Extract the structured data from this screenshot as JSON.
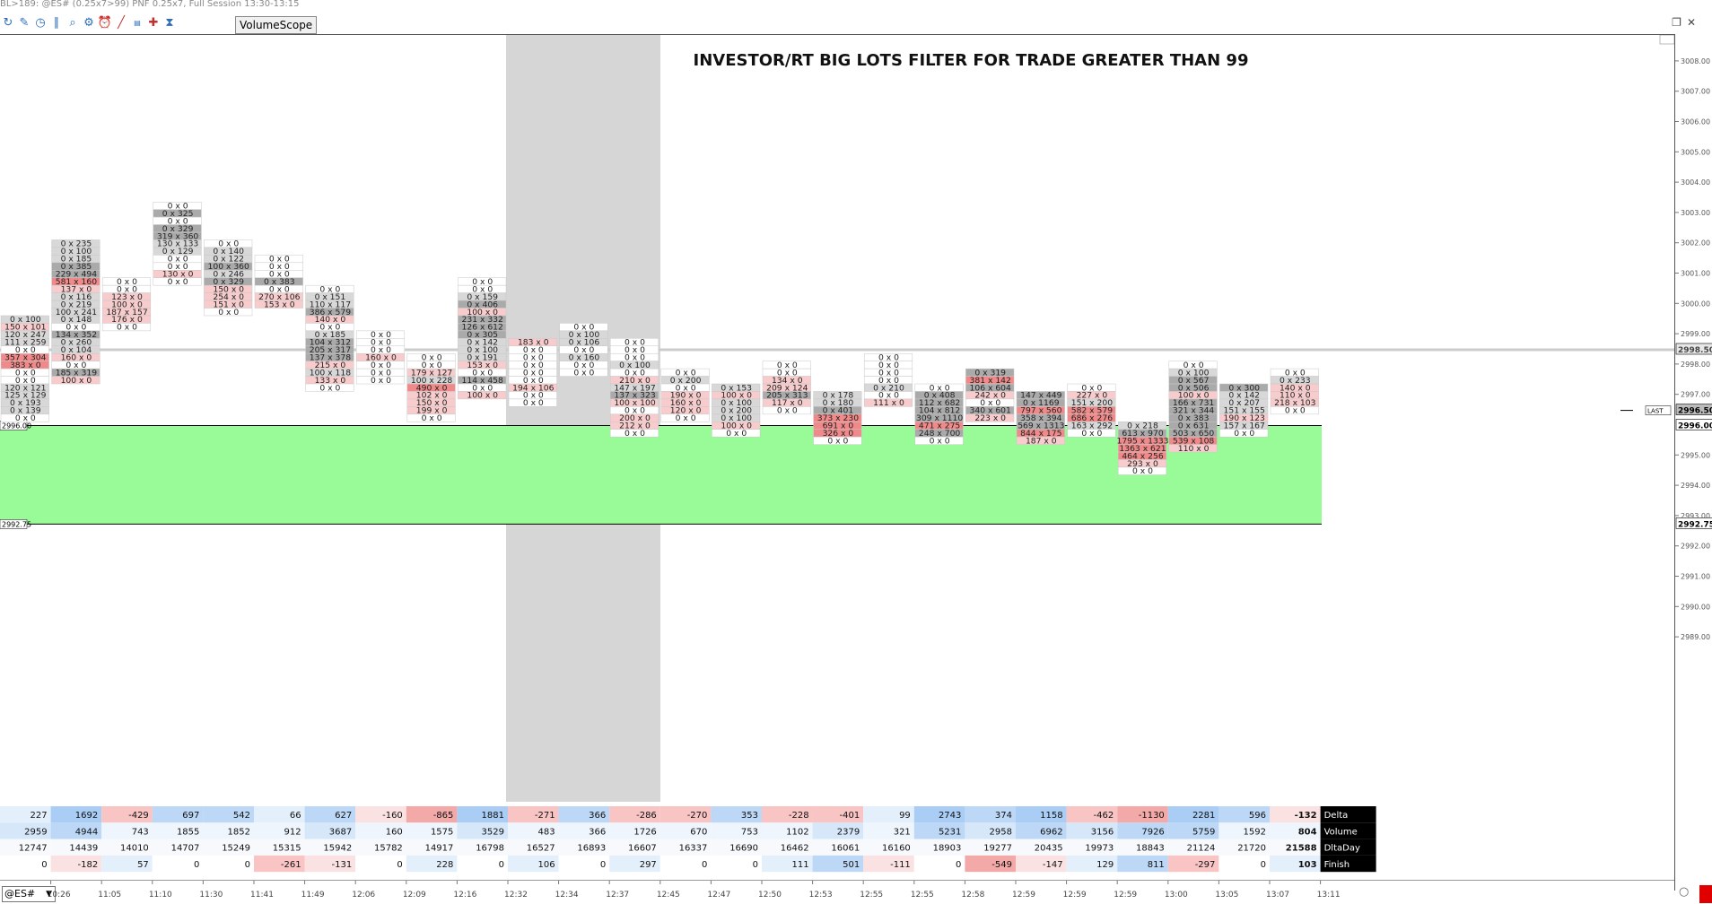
{
  "window": {
    "title": "BL>189: @ES# (0.25x7>99) PNF 0.25x7, Full Session 13:30-13:15",
    "vs_label": "VolumeScope",
    "symbol": "@ES#",
    "toolbar_icons": [
      "refresh-icon",
      "pencil-icon",
      "clock-icon",
      "chart-settings-icon",
      "zoom-icon",
      "gear-icon",
      "alarm-icon",
      "line-icon",
      "title-icon",
      "crosshair-icon",
      "hourglass-icon"
    ]
  },
  "chart_title": "INVESTOR/RT BIG LOTS FILTER FOR TRADE GREATER THAN 99",
  "colors": {
    "green_zone": "#98fb98",
    "gray_band": "#d6d6d6",
    "sell_strong": "#f08a8a",
    "sell_light": "#f8cccc",
    "buy_strong": "#aaaaaa",
    "buy_light": "#d8d8d8",
    "delta_pos": "#bcd8f6",
    "delta_neg": "#f8c4c4"
  },
  "zones": {
    "upper_label": "2996.00",
    "lower_label": "2992.75"
  },
  "price_axis": {
    "labels": [
      "3008.00",
      "3007.00",
      "3006.00",
      "3005.00",
      "3004.00",
      "3003.00",
      "3002.00",
      "3001.00",
      "3000.00",
      "2999.00",
      "2998.00",
      "2997.00",
      "2995.00",
      "2994.00",
      "2993.00",
      "2992.00",
      "2991.00",
      "2990.00",
      "2989.00"
    ],
    "last_label": "LAST",
    "current_label": "2996.50",
    "zone_label": "2996.00",
    "low_label": "2992.75",
    "ref_label": "2998.50"
  },
  "chart_data": {
    "type": "table",
    "times": [
      "10:26",
      "11:05",
      "11:10",
      "11:30",
      "11:41",
      "11:49",
      "12:06",
      "12:09",
      "12:16",
      "12:32",
      "12:34",
      "12:37",
      "12:45",
      "12:47",
      "12:50",
      "12:53",
      "12:55",
      "12:55",
      "12:58",
      "12:59",
      "12:59",
      "12:59",
      "13:00",
      "13:05",
      "13:07",
      "13:11"
    ],
    "bars": [
      {
        "start": 2999.5,
        "rows": [
          "0 x 100",
          "150 x 101",
          "120 x 247",
          "111 x 259",
          "0 x 0",
          "357 x 304",
          "383 x 0",
          "0 x 0",
          "0 x 0",
          "120 x 121",
          "125 x 129",
          "0 x 193",
          "0 x 139",
          "0 x 0"
        ]
      },
      {
        "start": 3002.0,
        "rows": [
          "0 x 235",
          "0 x 100",
          "0 x 185",
          "0 x 385",
          "229 x 494",
          "581 x 160",
          "137 x 0",
          "0 x 116",
          "0 x 219",
          "100 x 241",
          "0 x 148",
          "0 x 0",
          "134 x 352",
          "0 x 260",
          "0 x 104",
          "160 x 0",
          "0 x 0",
          "185 x 319",
          "100 x 0"
        ]
      },
      {
        "start": 3000.75,
        "rows": [
          "0 x 0",
          "0 x 0",
          "123 x 0",
          "100 x 0",
          "187 x 157",
          "176 x 0",
          "0 x 0"
        ]
      },
      {
        "start": 3003.25,
        "rows": [
          "0 x 0",
          "0 x 325",
          "0 x 0",
          "0 x 329",
          "319 x 360",
          "130 x 133",
          "0 x 129",
          "0 x 0",
          "0 x 0",
          "130 x 0",
          "0 x 0"
        ]
      },
      {
        "start": 3002.0,
        "rows": [
          "0 x 0",
          "0 x 140",
          "0 x 122",
          "100 x 360",
          "0 x 246",
          "0 x 329",
          "150 x 0",
          "254 x 0",
          "151 x 0",
          "0 x 0"
        ]
      },
      {
        "start": 3001.5,
        "rows": [
          "0 x 0",
          "0 x 0",
          "0 x 0",
          "0 x 383",
          "0 x 0",
          "270 x 106",
          "153 x 0"
        ]
      },
      {
        "start": 3000.5,
        "rows": [
          "0 x 0",
          "0 x 151",
          "110 x 117",
          "386 x 579",
          "140 x 0",
          "0 x 0",
          "0 x 185",
          "104 x 312",
          "205 x 317",
          "137 x 378",
          "215 x 0",
          "100 x 118",
          "133 x 0",
          "0 x 0"
        ]
      },
      {
        "start": 2999.0,
        "rows": [
          "0 x 0",
          "0 x 0",
          "0 x 0",
          "160 x 0",
          "0 x 0",
          "0 x 0",
          "0 x 0"
        ]
      },
      {
        "start": 2998.25,
        "rows": [
          "0 x 0",
          "0 x 0",
          "179 x 127",
          "100 x 228",
          "490 x 0",
          "102 x 0",
          "150 x 0",
          "199 x 0",
          "0 x 0"
        ]
      },
      {
        "start": 3000.75,
        "rows": [
          "0 x 0",
          "0 x 0",
          "0 x 159",
          "0 x 406",
          "100 x 0",
          "231 x 332",
          "126 x 612",
          "0 x 305",
          "0 x 142",
          "0 x 100",
          "0 x 191",
          "153 x 0",
          "0 x 0",
          "114 x 458",
          "0 x 0",
          "100 x 0"
        ]
      },
      {
        "start": 2998.75,
        "rows": [
          "183 x 0",
          "0 x 0",
          "0 x 0",
          "0 x 0",
          "0 x 0",
          "0 x 0",
          "194 x 106",
          "0 x 0",
          "0 x 0"
        ]
      },
      {
        "start": 2999.25,
        "rows": [
          "0 x 0",
          "0 x 100",
          "0 x 106",
          "0 x 0",
          "0 x 160",
          "0 x 0",
          "0 x 0"
        ]
      },
      {
        "start": 2998.75,
        "rows": [
          "0 x 0",
          "0 x 0",
          "0 x 0",
          "0 x 100",
          "0 x 0",
          "210 x 0",
          "147 x 197",
          "137 x 323",
          "100 x 100",
          "0 x 0",
          "200 x 0",
          "212 x 0",
          "0 x 0"
        ]
      },
      {
        "start": 2997.75,
        "rows": [
          "0 x 0",
          "0 x 200",
          "0 x 0",
          "190 x 0",
          "160 x 0",
          "120 x 0",
          "0 x 0"
        ]
      },
      {
        "start": 2997.25,
        "rows": [
          "0 x 153",
          "100 x 0",
          "0 x 100",
          "0 x 200",
          "0 x 100",
          "100 x 0",
          "0 x 0"
        ]
      },
      {
        "start": 2998.0,
        "rows": [
          "0 x 0",
          "0 x 0",
          "134 x 0",
          "209 x 124",
          "205 x 313",
          "117 x 0",
          "0 x 0"
        ]
      },
      {
        "start": 2997.0,
        "rows": [
          "0 x 178",
          "0 x 180",
          "0 x 401",
          "373 x 230",
          "691 x 0",
          "326 x 0",
          "0 x 0"
        ]
      },
      {
        "start": 2998.25,
        "rows": [
          "0 x 0",
          "0 x 0",
          "0 x 0",
          "0 x 0",
          "0 x 210",
          "0 x 0",
          "111 x 0"
        ]
      },
      {
        "start": 2997.25,
        "rows": [
          "0 x 0",
          "0 x 408",
          "112 x 682",
          "104 x 812",
          "309 x 1110",
          "471 x 275",
          "248 x 700",
          "0 x 0"
        ]
      },
      {
        "start": 2997.75,
        "rows": [
          "0 x 319",
          "381 x 142",
          "106 x 604",
          "242 x 0",
          "0 x 0",
          "340 x 601",
          "223 x 0"
        ]
      },
      {
        "start": 2997.0,
        "rows": [
          "147 x 449",
          "0 x 1169",
          "797 x 560",
          "358 x 394",
          "569 x 1313",
          "844 x 175",
          "187 x 0"
        ]
      },
      {
        "start": 2997.25,
        "rows": [
          "0 x 0",
          "227 x 0",
          "151 x 200",
          "582 x 579",
          "686 x 276",
          "163 x 292",
          "0 x 0"
        ]
      },
      {
        "start": 2996.0,
        "rows": [
          "0 x 218",
          "613 x 970",
          "1795 x 1333",
          "1363 x 621",
          "464 x 256",
          "293 x 0",
          "0 x 0"
        ]
      },
      {
        "start": 2998.0,
        "rows": [
          "0 x 0",
          "0 x 100",
          "0 x 567",
          "0 x 506",
          "100 x 0",
          "166 x 731",
          "321 x 344",
          "0 x 383",
          "0 x 631",
          "503 x 650",
          "539 x 108",
          "110 x 0"
        ]
      },
      {
        "start": 2997.25,
        "rows": [
          "0 x 300",
          "0 x 142",
          "0 x 207",
          "151 x 155",
          "190 x 123",
          "157 x 167",
          "0 x 0"
        ]
      },
      {
        "start": 2997.75,
        "rows": [
          "0 x 0",
          "0 x 233",
          "140 x 0",
          "110 x 0",
          "218 x 103",
          "0 x 0"
        ]
      }
    ],
    "stats": {
      "labels": [
        "Delta",
        "Volume",
        "DltaDay",
        "Finish"
      ],
      "delta": [
        227,
        1692,
        -429,
        697,
        542,
        66,
        627,
        -160,
        -865,
        1881,
        -271,
        366,
        -286,
        -270,
        353,
        -228,
        -401,
        99,
        2743,
        374,
        1158,
        -462,
        -1130,
        2281,
        596,
        -132
      ],
      "volume": [
        2959,
        4944,
        743,
        1855,
        1852,
        912,
        3687,
        160,
        1575,
        3529,
        483,
        366,
        1726,
        670,
        753,
        1102,
        2379,
        321,
        5231,
        2958,
        6962,
        3156,
        7926,
        5759,
        1592,
        804
      ],
      "dltaday": [
        12747,
        14439,
        14010,
        14707,
        15249,
        15315,
        15942,
        15782,
        14917,
        16798,
        16527,
        16893,
        16607,
        16337,
        16690,
        16462,
        16061,
        16160,
        18903,
        19277,
        20435,
        19973,
        18843,
        21124,
        21720,
        21588
      ],
      "finish": [
        0,
        -182,
        57,
        0,
        0,
        -261,
        -131,
        0,
        228,
        0,
        106,
        0,
        297,
        0,
        0,
        111,
        501,
        -111,
        0,
        -549,
        -147,
        129,
        811,
        -297,
        0,
        103
      ]
    }
  }
}
